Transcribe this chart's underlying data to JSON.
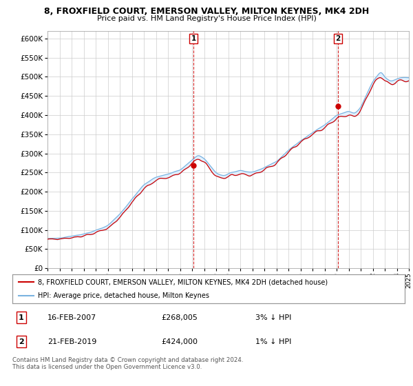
{
  "title_line1": "8, FROXFIELD COURT, EMERSON VALLEY, MILTON KEYNES, MK4 2DH",
  "title_line2": "Price paid vs. HM Land Registry's House Price Index (HPI)",
  "ylim": [
    0,
    620000
  ],
  "yticks": [
    0,
    50000,
    100000,
    150000,
    200000,
    250000,
    300000,
    350000,
    400000,
    450000,
    500000,
    550000,
    600000
  ],
  "hpi_color": "#7ab3e0",
  "price_color": "#cc0000",
  "fill_color": "#ddeeff",
  "marker1_year": 2007.12,
  "marker1_price": 268005,
  "marker2_year": 2019.12,
  "marker2_price": 424000,
  "legend_line1": "8, FROXFIELD COURT, EMERSON VALLEY, MILTON KEYNES, MK4 2DH (detached house)",
  "legend_line2": "HPI: Average price, detached house, Milton Keynes",
  "footnote": "Contains HM Land Registry data © Crown copyright and database right 2024.\nThis data is licensed under the Open Government Licence v3.0."
}
